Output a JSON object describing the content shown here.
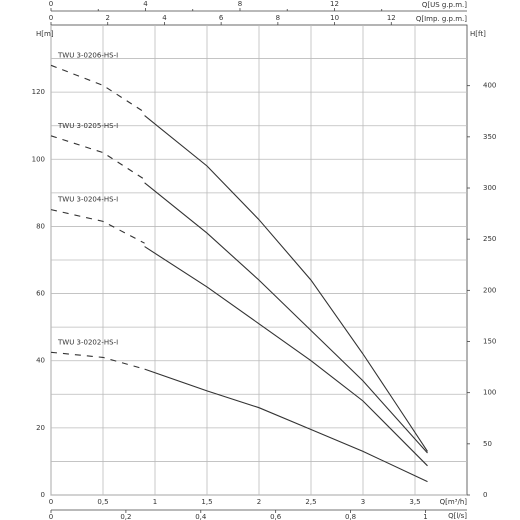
{
  "chart_data": {
    "type": "line",
    "x_title": "Q[m³/h]",
    "y_title": "H[m]",
    "y2_title": "H[ft]",
    "top_title": "Q[US g.p.m.]",
    "top2_title": "Q[Imp. g.p.m.]",
    "bottom2_title": "Q[l/s]",
    "xlim": [
      0,
      4
    ],
    "xticks": [
      0,
      {
        "value": 0.5,
        "label": "0,5"
      },
      1,
      {
        "value": 1.5,
        "label": "1,5"
      },
      2,
      {
        "value": 2.5,
        "label": "2,5"
      },
      3,
      {
        "value": 3.5,
        "label": "3,5"
      }
    ],
    "ylim": [
      0,
      140
    ],
    "yticks": [
      0,
      20,
      40,
      60,
      80,
      100,
      120
    ],
    "y_minor_ticks": [
      10,
      30,
      50,
      70,
      90,
      110,
      130
    ],
    "y2lim": [
      0,
      459.3
    ],
    "y2ticks": [
      0,
      50,
      100,
      150,
      200,
      250,
      300,
      350,
      400
    ],
    "toplim": [
      0,
      17.61
    ],
    "topticks": [
      0,
      4,
      8,
      12
    ],
    "top_minor_ticks": [
      2,
      6,
      10,
      14
    ],
    "top2lim": [
      0,
      14.67
    ],
    "top2ticks": [
      0,
      2,
      4,
      6,
      8,
      10,
      12
    ],
    "bottom2lim": [
      0,
      1.111
    ],
    "bottom2ticks": [
      0,
      {
        "value": 0.2,
        "label": "0,2"
      },
      {
        "value": 0.4,
        "label": "0,4"
      },
      {
        "value": 0.6,
        "label": "0,6"
      },
      {
        "value": 0.8,
        "label": "0,8"
      },
      1
    ],
    "grid": true,
    "series": [
      {
        "name": "TWU 3-0206-HS-I",
        "color": "#333333",
        "dashed_x": [
          0,
          0.5,
          0.9
        ],
        "dashed_values": [
          128,
          122,
          114
        ],
        "x": [
          0.9,
          1.5,
          2,
          2.5,
          3,
          3.3,
          3.62
        ],
        "values": [
          113,
          98,
          82,
          64,
          42,
          28,
          13
        ]
      },
      {
        "name": "TWU 3-0205-HS-I",
        "color": "#333333",
        "dashed_x": [
          0,
          0.5,
          0.9
        ],
        "dashed_values": [
          107,
          102,
          94
        ],
        "x": [
          0.9,
          1.5,
          2,
          2.5,
          3,
          3.62
        ],
        "values": [
          93,
          78,
          64,
          49,
          34,
          12.5
        ]
      },
      {
        "name": "TWU 3-0204-HS-I",
        "color": "#333333",
        "dashed_x": [
          0,
          0.5,
          0.9
        ],
        "dashed_values": [
          85,
          81.5,
          75
        ],
        "x": [
          0.9,
          1.5,
          2,
          2.5,
          3,
          3.62
        ],
        "values": [
          74,
          62,
          51,
          40,
          28,
          8.7
        ]
      },
      {
        "name": "TWU 3-0202-HS-I",
        "color": "#333333",
        "dashed_x": [
          0,
          0.5,
          0.9
        ],
        "dashed_values": [
          42.5,
          41,
          37.5
        ],
        "x": [
          0.9,
          1.5,
          2,
          2.5,
          3,
          3.62
        ],
        "values": [
          37.5,
          31,
          26,
          19.5,
          13,
          4
        ]
      }
    ]
  }
}
